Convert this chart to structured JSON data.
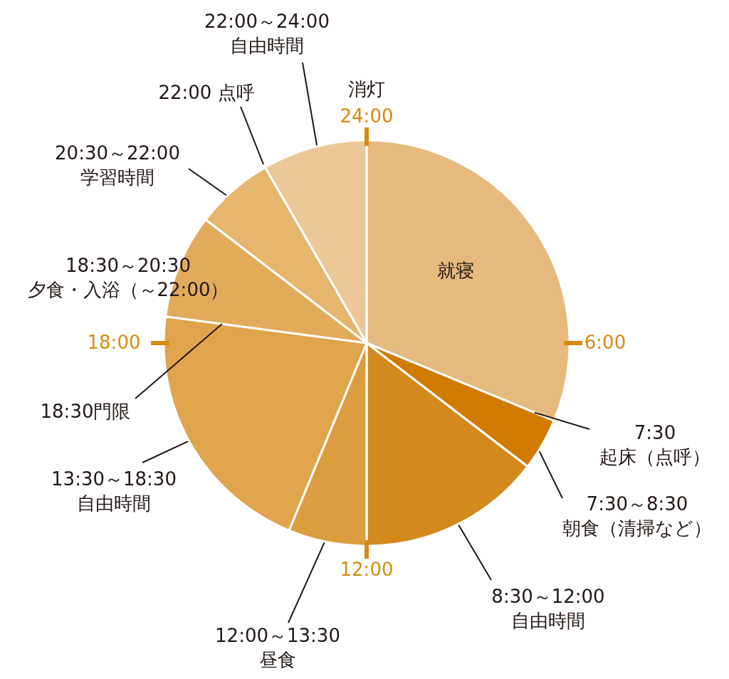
{
  "chart_data": {
    "type": "pie",
    "categories": [
      "就寝",
      "7:30～8:30\n朝食（清掃など）",
      "8:30～12:00\n自由時間",
      "12:00～13:30\n昼食",
      "13:30～18:30\n自由時間",
      "18:30～20:30\n夕食・入浴（～22:00）",
      "20:30～22:00\n学習時間",
      "22:00～24:00\n自由時間"
    ],
    "values": [
      31.25,
      4.17,
      14.58,
      6.25,
      20.84,
      8.33,
      6.25,
      8.33
    ],
    "colors": [
      "#e6b97f",
      "#d17a00",
      "#d4891c",
      "#dc9d3f",
      "#e0a44d",
      "#e2ab5c",
      "#e6b66e",
      "#ecc898"
    ],
    "annotations": [
      "消灯",
      "24:00",
      "6:00",
      "12:00",
      "18:00",
      "7:30\n起床（点呼）",
      "22:00 点呼",
      "18:30門限"
    ],
    "legend": false
  }
}
